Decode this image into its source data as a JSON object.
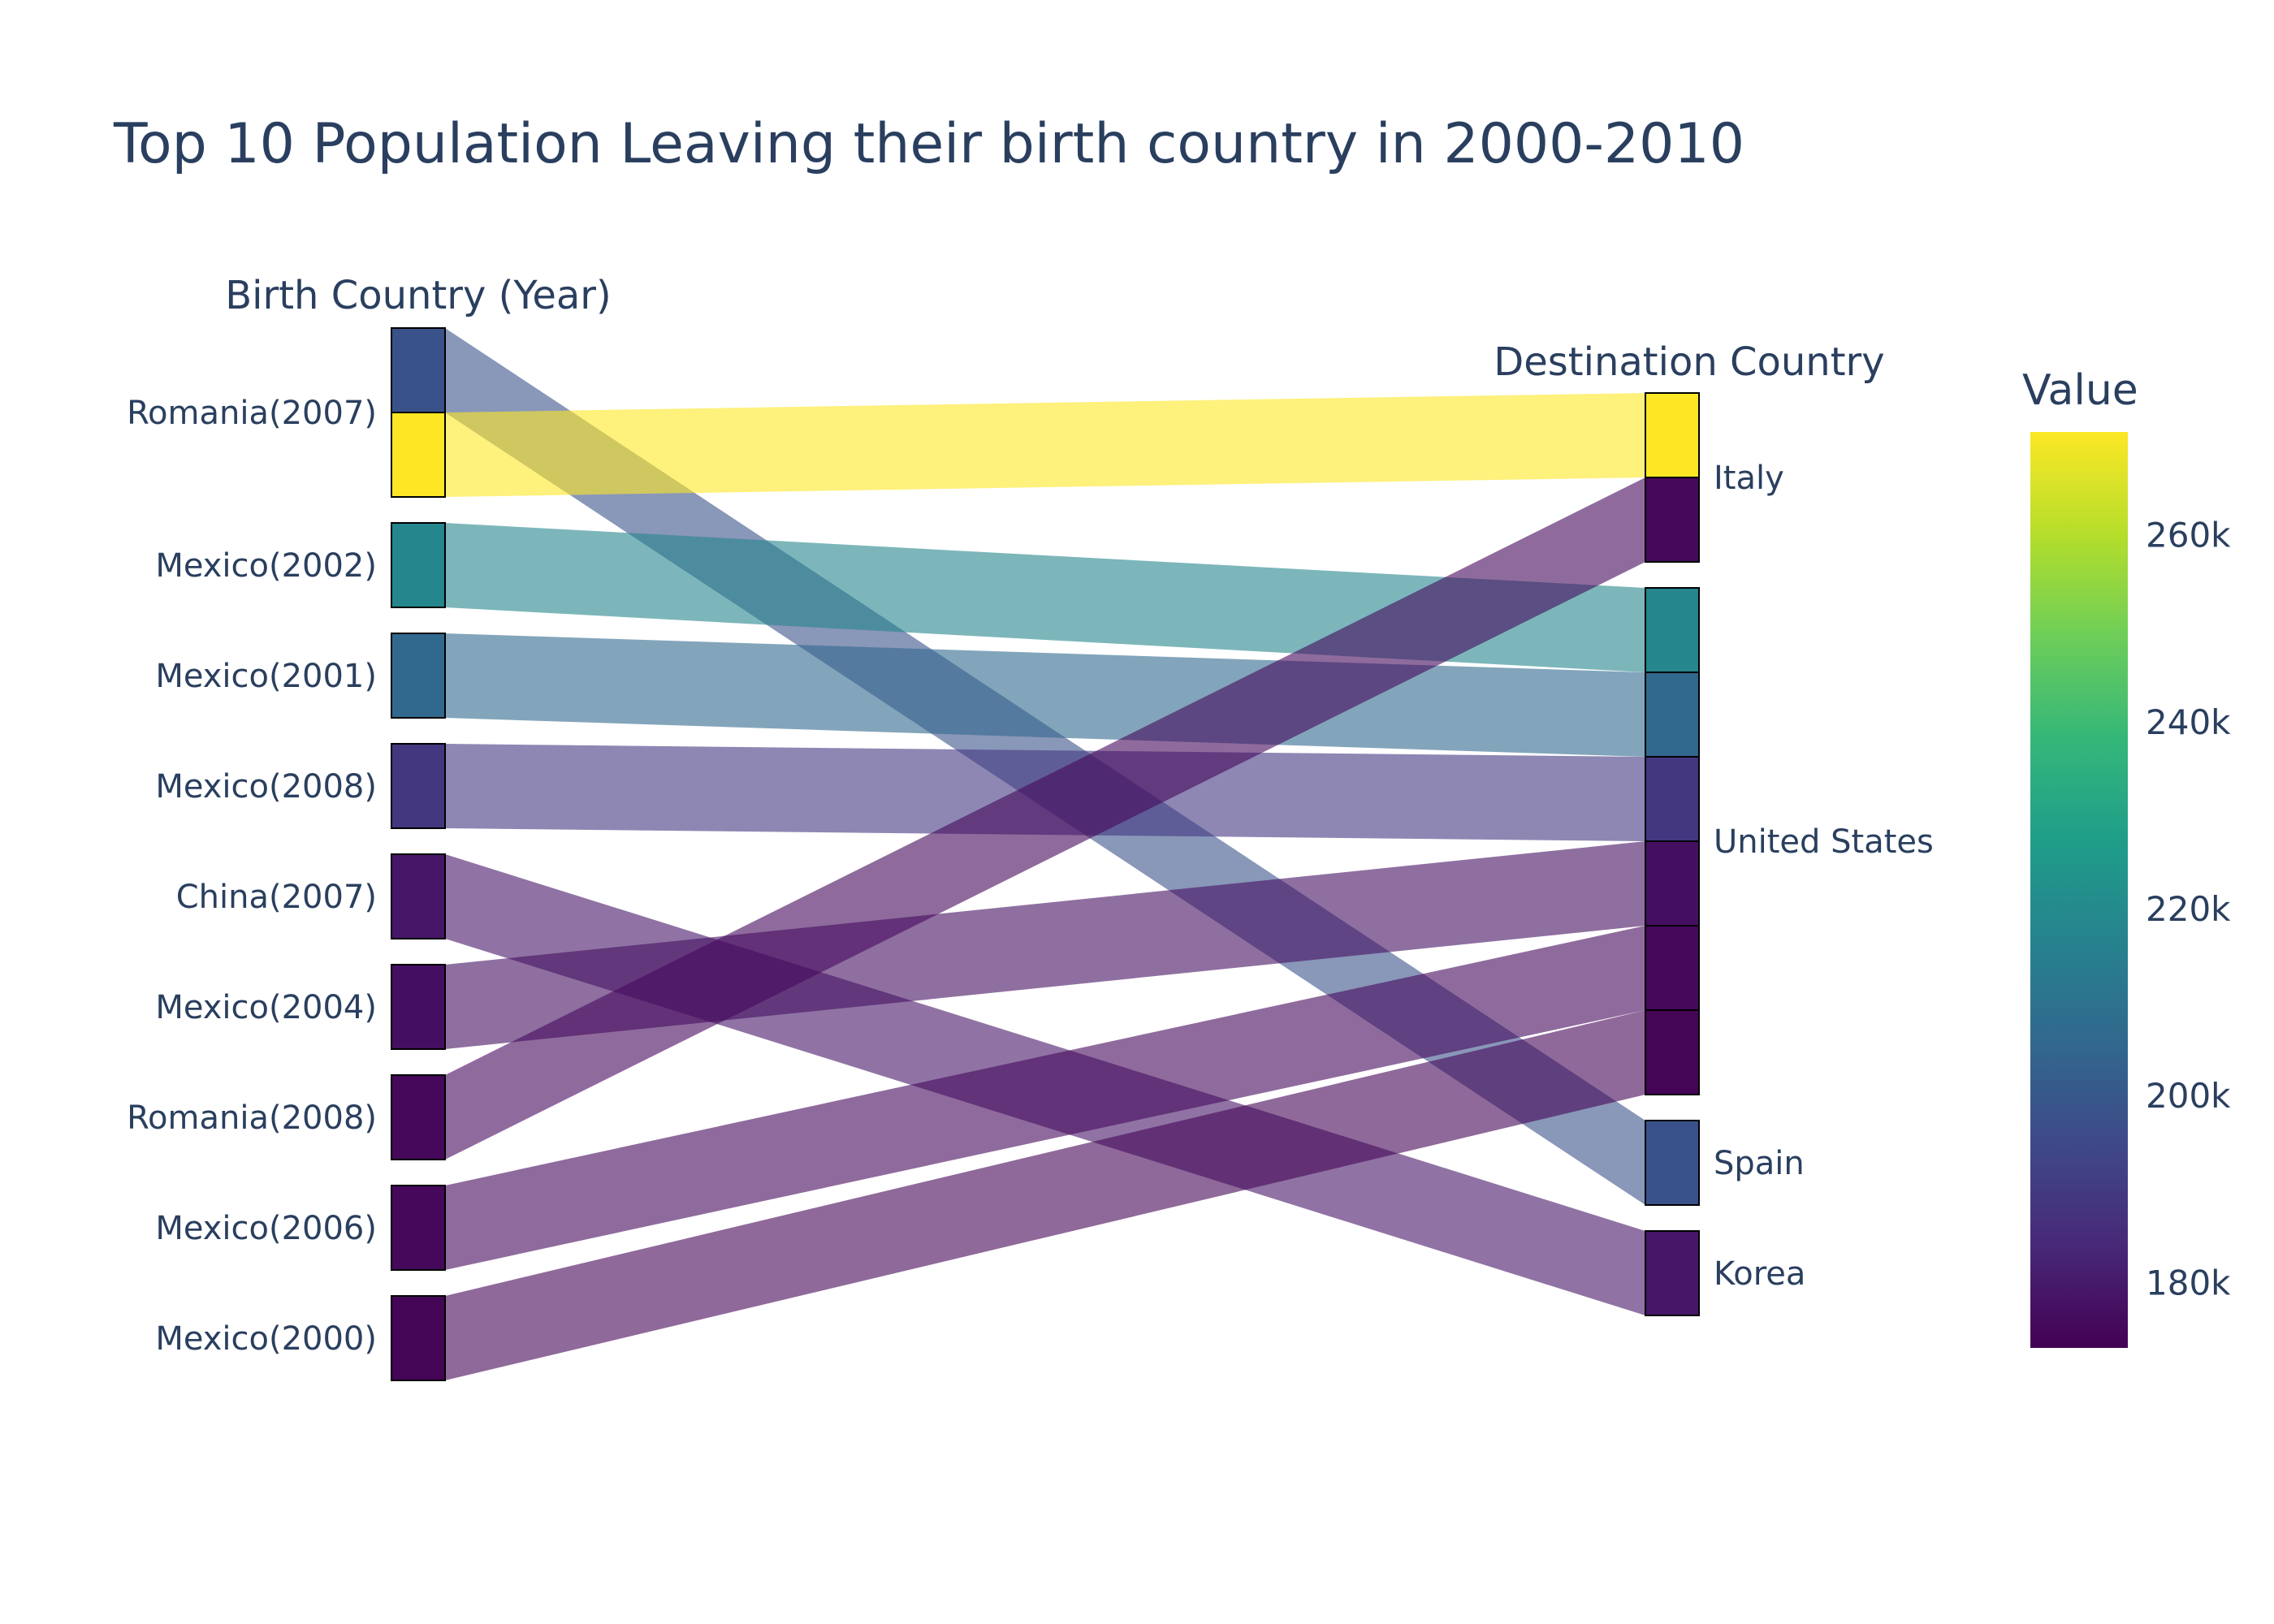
{
  "chart_data": {
    "type": "alluvial",
    "title": "Top 10 Population Leaving their birth country in 2000-2010",
    "left_axis_title": "Birth Country (Year)",
    "right_axis_title": "Destination Country",
    "colorbar": {
      "title": "Value",
      "range": [
        173000,
        271000
      ],
      "ticks": [
        180000,
        200000,
        220000,
        240000,
        260000
      ],
      "tick_labels": [
        "180k",
        "200k",
        "220k",
        "240k",
        "260k"
      ],
      "colorscale": [
        "#440154",
        "#482878",
        "#3e4989",
        "#31688e",
        "#26828e",
        "#1f9e89",
        "#35b779",
        "#6ece58",
        "#b5de2b",
        "#fde725"
      ]
    },
    "sources": [
      "Romania(2007)",
      "Mexico(2002)",
      "Mexico(2001)",
      "Mexico(2008)",
      "China(2007)",
      "Mexico(2004)",
      "Romania(2008)",
      "Mexico(2006)",
      "Mexico(2000)"
    ],
    "destinations": [
      "Italy",
      "United States",
      "Spain",
      "Korea"
    ],
    "flows": [
      {
        "source": "Romania(2007)",
        "destination": "Spain",
        "value": 198000
      },
      {
        "source": "Romania(2007)",
        "destination": "Italy",
        "value": 271000
      },
      {
        "source": "Mexico(2002)",
        "destination": "United States",
        "value": 218000
      },
      {
        "source": "Mexico(2001)",
        "destination": "United States",
        "value": 206000
      },
      {
        "source": "Mexico(2008)",
        "destination": "United States",
        "value": 189000
      },
      {
        "source": "China(2007)",
        "destination": "Korea",
        "value": 179000
      },
      {
        "source": "Mexico(2004)",
        "destination": "United States",
        "value": 177000
      },
      {
        "source": "Romania(2008)",
        "destination": "Italy",
        "value": 175000
      },
      {
        "source": "Mexico(2006)",
        "destination": "United States",
        "value": 175000
      },
      {
        "source": "Mexico(2000)",
        "destination": "United States",
        "value": 174000
      }
    ]
  }
}
